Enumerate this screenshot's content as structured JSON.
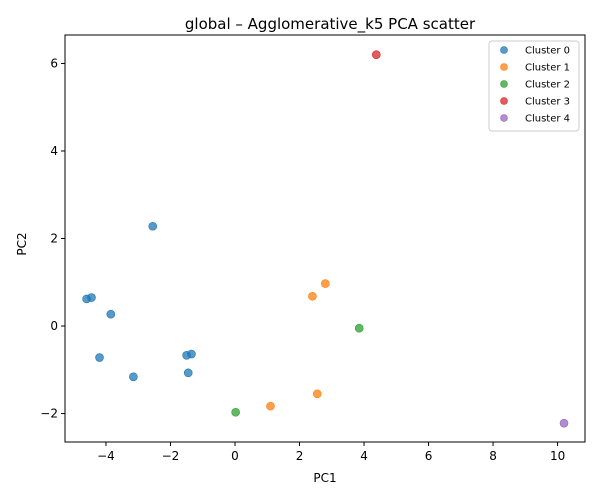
{
  "chart_data": {
    "type": "scatter",
    "title": "global – Agglomerative_k5 PCA scatter",
    "xlabel": "PC1",
    "ylabel": "PC2",
    "xlim": [
      -5.27,
      10.85
    ],
    "ylim": [
      -2.65,
      6.65
    ],
    "xticks": [
      -4,
      -2,
      0,
      2,
      4,
      6,
      8,
      10
    ],
    "yticks": [
      -2,
      0,
      2,
      4,
      6
    ],
    "grid": false,
    "legend_position": "top-right",
    "series": [
      {
        "name": "Cluster 0",
        "color": "#1f77b4",
        "points": [
          {
            "x": -2.55,
            "y": 2.28
          },
          {
            "x": -4.6,
            "y": 0.62
          },
          {
            "x": -4.45,
            "y": 0.65
          },
          {
            "x": -3.85,
            "y": 0.27
          },
          {
            "x": -4.2,
            "y": -0.72
          },
          {
            "x": -1.5,
            "y": -0.67
          },
          {
            "x": -1.35,
            "y": -0.64
          },
          {
            "x": -1.45,
            "y": -1.07
          },
          {
            "x": -3.15,
            "y": -1.16
          }
        ]
      },
      {
        "name": "Cluster 1",
        "color": "#ff7f0e",
        "points": [
          {
            "x": 2.8,
            "y": 0.97
          },
          {
            "x": 2.4,
            "y": 0.68
          },
          {
            "x": 2.55,
            "y": -1.55
          },
          {
            "x": 1.1,
            "y": -1.83
          }
        ]
      },
      {
        "name": "Cluster 2",
        "color": "#2ca02c",
        "points": [
          {
            "x": 3.85,
            "y": -0.05
          },
          {
            "x": 0.02,
            "y": -1.97
          }
        ]
      },
      {
        "name": "Cluster 3",
        "color": "#d62728",
        "points": [
          {
            "x": 4.38,
            "y": 6.2
          }
        ]
      },
      {
        "name": "Cluster 4",
        "color": "#9467bd",
        "points": [
          {
            "x": 10.2,
            "y": -2.22
          }
        ]
      }
    ]
  }
}
